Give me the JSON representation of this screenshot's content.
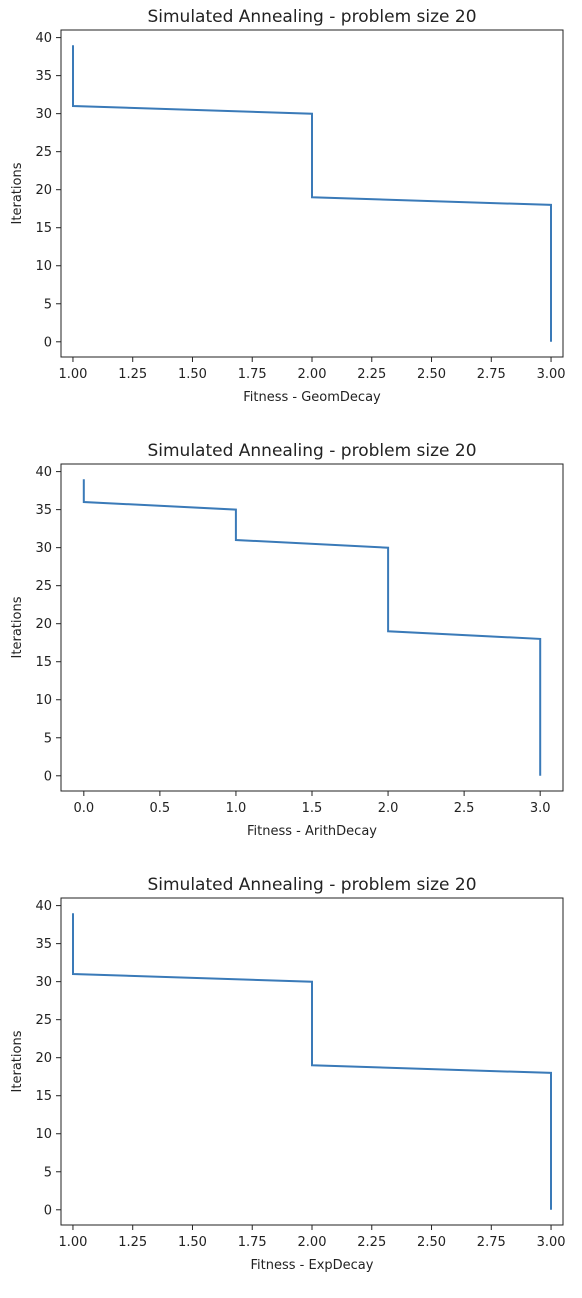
{
  "colors": {
    "series": "#3a7ab8"
  },
  "chart_data": [
    {
      "type": "line",
      "title": "Simulated Annealing - problem size 20",
      "xlabel": "Fitness - GeomDecay",
      "ylabel": "Iterations",
      "xlim": [
        0.95,
        3.05
      ],
      "ylim": [
        -2,
        41
      ],
      "xticks": [
        "1.00",
        "1.25",
        "1.50",
        "1.75",
        "2.00",
        "2.25",
        "2.50",
        "2.75",
        "3.00"
      ],
      "xtick_values": [
        1.0,
        1.25,
        1.5,
        1.75,
        2.0,
        2.25,
        2.5,
        2.75,
        3.0
      ],
      "yticks": [
        "0",
        "5",
        "10",
        "15",
        "20",
        "25",
        "30",
        "35",
        "40"
      ],
      "ytick_values": [
        0,
        5,
        10,
        15,
        20,
        25,
        30,
        35,
        40
      ],
      "x": [
        3,
        3,
        2,
        2,
        1,
        1
      ],
      "y": [
        0,
        18,
        19,
        30,
        31,
        39
      ],
      "grid": false
    },
    {
      "type": "line",
      "title": "Simulated Annealing - problem size 20",
      "xlabel": "Fitness - ArithDecay",
      "ylabel": "Iterations",
      "xlim": [
        -0.15,
        3.15
      ],
      "ylim": [
        -2,
        41
      ],
      "xticks": [
        "0.0",
        "0.5",
        "1.0",
        "1.5",
        "2.0",
        "2.5",
        "3.0"
      ],
      "xtick_values": [
        0.0,
        0.5,
        1.0,
        1.5,
        2.0,
        2.5,
        3.0
      ],
      "yticks": [
        "0",
        "5",
        "10",
        "15",
        "20",
        "25",
        "30",
        "35",
        "40"
      ],
      "ytick_values": [
        0,
        5,
        10,
        15,
        20,
        25,
        30,
        35,
        40
      ],
      "x": [
        3,
        3,
        2,
        2,
        1,
        1,
        0,
        0
      ],
      "y": [
        0,
        18,
        19,
        30,
        31,
        35,
        36,
        39
      ],
      "grid": false
    },
    {
      "type": "line",
      "title": "Simulated Annealing - problem size 20",
      "xlabel": "Fitness - ExpDecay",
      "ylabel": "Iterations",
      "xlim": [
        0.95,
        3.05
      ],
      "ylim": [
        -2,
        41
      ],
      "xticks": [
        "1.00",
        "1.25",
        "1.50",
        "1.75",
        "2.00",
        "2.25",
        "2.50",
        "2.75",
        "3.00"
      ],
      "xtick_values": [
        1.0,
        1.25,
        1.5,
        1.75,
        2.0,
        2.25,
        2.5,
        2.75,
        3.0
      ],
      "yticks": [
        "0",
        "5",
        "10",
        "15",
        "20",
        "25",
        "30",
        "35",
        "40"
      ],
      "ytick_values": [
        0,
        5,
        10,
        15,
        20,
        25,
        30,
        35,
        40
      ],
      "x": [
        3,
        3,
        2,
        2,
        1,
        1
      ],
      "y": [
        0,
        18,
        19,
        30,
        31,
        39
      ],
      "grid": false
    }
  ]
}
